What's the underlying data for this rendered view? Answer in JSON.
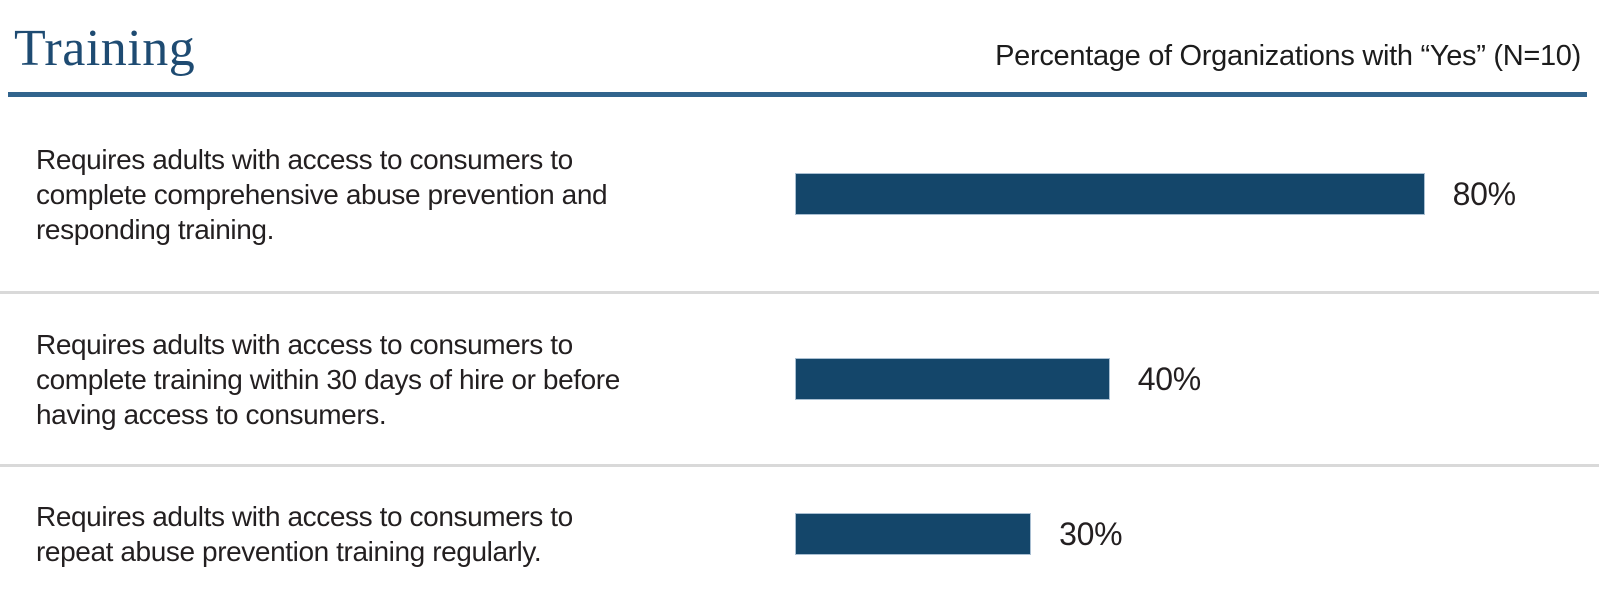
{
  "header": {
    "title": "Training",
    "subtitle": "Percentage of Organizations with “Yes” (N=10)"
  },
  "chart_data": {
    "type": "bar",
    "orientation": "horizontal",
    "title": "Training",
    "xlabel": "Percentage of Organizations with “Yes” (N=10)",
    "sample_size": "N=10",
    "categories": [
      "Requires adults with access to consumers to complete comprehensive abuse prevention and responding training.",
      "Requires adults with access to consumers to complete training within 30 days of hire or before having access to consumers.",
      "Requires adults with access to consumers to repeat abuse prevention training regularly."
    ],
    "values": [
      80,
      40,
      30
    ],
    "value_labels": [
      "80%",
      "40%",
      "30%"
    ],
    "xlim": [
      0,
      100
    ],
    "grid": false,
    "legend": "none"
  },
  "rows": [
    {
      "lines": [
        "Requires adults with access to consumers to",
        "complete comprehensive abuse prevention and",
        "responding training."
      ],
      "value": 80,
      "value_label": "80%"
    },
    {
      "lines": [
        "Requires adults with access to consumers to",
        "complete training within 30 days of hire or before",
        "having access to consumers."
      ],
      "value": 40,
      "value_label": "40%"
    },
    {
      "lines": [
        "Requires adults with access to consumers to",
        "repeat abuse prevention training regularly."
      ],
      "value": 30,
      "value_label": "30%"
    }
  ],
  "colors": {
    "title_blue": "#1e4b72",
    "rule_blue": "#31648d",
    "bar_fill": "#14466a",
    "bar_border": "#a9bfd2",
    "divider_gray": "#d9d9d9",
    "text": "#231f20"
  }
}
